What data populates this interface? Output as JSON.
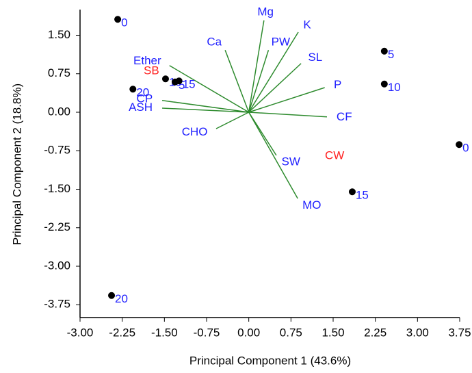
{
  "chart_data": {
    "type": "biplot",
    "xlabel": "Principal Component 1 (43.6%)",
    "ylabel": "Principal Component 2 (18.8%)",
    "xlim": [
      -3.0,
      3.75
    ],
    "ylim": [
      -4.0,
      2.0
    ],
    "xticks": [
      {
        "value": -3.0,
        "label": "-3.00"
      },
      {
        "value": -2.25,
        "label": "-2.25"
      },
      {
        "value": -1.5,
        "label": "-1.50"
      },
      {
        "value": -0.75,
        "label": "-0.75"
      },
      {
        "value": 0,
        "label": "0.00"
      },
      {
        "value": 0.75,
        "label": "0.75"
      },
      {
        "value": 1.5,
        "label": "1.50"
      },
      {
        "value": 2.25,
        "label": "2.25"
      },
      {
        "value": 3.0,
        "label": "3.00"
      },
      {
        "value": 3.75,
        "label": "3.75"
      }
    ],
    "yticks": [
      {
        "value": 1.5,
        "label": "1.50"
      },
      {
        "value": 0.75,
        "label": "0.75"
      },
      {
        "value": 0,
        "label": "0.00"
      },
      {
        "value": -0.75,
        "label": "-0.75"
      },
      {
        "value": -1.5,
        "label": "-1.50"
      },
      {
        "value": -2.25,
        "label": "-2.25"
      },
      {
        "value": -3.0,
        "label": "-3.00"
      },
      {
        "value": -3.75,
        "label": "-3.75"
      }
    ],
    "points": {
      "color": "#000000",
      "label_color": "#1f1fff",
      "labels": [
        "0",
        "5",
        "10",
        "0",
        "15",
        "20",
        "20",
        "10",
        "5",
        "15"
      ],
      "x": [
        -2.33,
        2.41,
        2.41,
        3.74,
        1.84,
        -2.44,
        -2.06,
        -1.48,
        -1.31,
        -1.24
      ],
      "y": [
        1.81,
        1.19,
        0.55,
        -0.63,
        -1.55,
        -3.57,
        0.45,
        0.65,
        0.59,
        0.61
      ]
    },
    "loadings": {
      "color": "#2e8b2e",
      "label_color": "#1f1fff",
      "labels": [
        "Mg",
        "K",
        "PW",
        "Ca",
        "SL",
        "P",
        "CF",
        "SW",
        "MO",
        "CHO",
        "ASH",
        "CP",
        "Ether"
      ],
      "x": [
        0.27,
        0.88,
        0.35,
        -0.42,
        0.93,
        1.35,
        1.39,
        0.49,
        0.87,
        -0.58,
        -1.54,
        -1.54,
        -1.41
      ],
      "y": [
        1.79,
        1.56,
        1.21,
        1.21,
        0.95,
        0.48,
        -0.09,
        -0.84,
        -1.68,
        -0.32,
        0.08,
        0.23,
        0.91
      ]
    },
    "annotations": [
      "SB",
      "CW"
    ],
    "annotation_color": "#ff2020"
  }
}
